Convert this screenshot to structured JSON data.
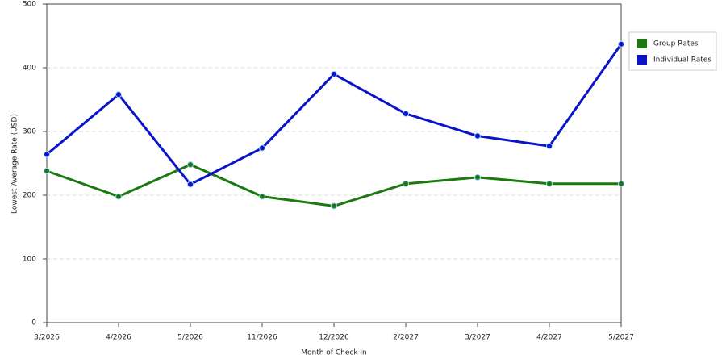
{
  "chart_data": {
    "type": "line",
    "x_label": "Month of Check In",
    "y_label": "Lowest Average Rate (USD)",
    "categories": [
      "3/2026",
      "4/2026",
      "5/2026",
      "11/2026",
      "12/2026",
      "2/2027",
      "3/2027",
      "4/2027",
      "5/2027"
    ],
    "series": [
      {
        "name": "Group Rates",
        "color": "#1a7a10",
        "values": [
          238,
          198,
          248,
          198,
          183,
          218,
          228,
          218,
          218
        ]
      },
      {
        "name": "Individual Rates",
        "color": "#0a14c8",
        "values": [
          264,
          358,
          217,
          274,
          390,
          328,
          293,
          277,
          437
        ]
      }
    ],
    "ylim": [
      0,
      500
    ],
    "yticks": [
      0,
      100,
      200,
      300,
      400,
      500
    ],
    "grid": true,
    "legend": "right"
  }
}
